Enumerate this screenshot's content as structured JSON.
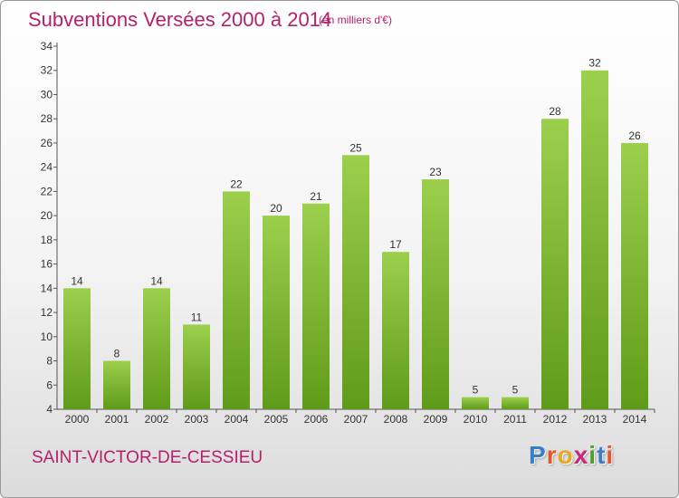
{
  "header": {
    "title": "Subventions Versées 2000 à 2014",
    "subtitle": "(en milliers d'€)"
  },
  "footer": {
    "commune": "SAINT-VICTOR-DE-CESSIEU",
    "logo": [
      "P",
      "r",
      "o",
      "x",
      "i",
      "t",
      "i"
    ]
  },
  "colors": {
    "title": "#b5206a",
    "bar_top": "#9ccf4c",
    "bar_bottom": "#5f9b1a",
    "logo": [
      "#3a7dc4",
      "#e1572b",
      "#e8a81f",
      "#c6297b",
      "#4a9f2e",
      "#3a7dc4",
      "#e1572b"
    ]
  },
  "chart_data": {
    "type": "bar",
    "title": "Subventions Versées 2000 à 2014",
    "categories": [
      "2000",
      "2001",
      "2002",
      "2003",
      "2004",
      "2005",
      "2006",
      "2007",
      "2008",
      "2009",
      "2010",
      "2011",
      "2012",
      "2013",
      "2014"
    ],
    "values": [
      14,
      8,
      14,
      11,
      22,
      20,
      21,
      25,
      17,
      23,
      5,
      5,
      28,
      32,
      26
    ],
    "data_labels": [
      "14",
      "8",
      "14",
      "11",
      "22",
      "20",
      "21",
      "25",
      "17",
      "23",
      "5",
      "5",
      "28",
      "32",
      "26"
    ],
    "y_ticks": [
      4,
      6,
      8,
      10,
      12,
      14,
      16,
      18,
      20,
      22,
      24,
      26,
      28,
      30,
      32,
      34
    ],
    "y_tick_labels": [
      "4",
      "6",
      "8",
      "10",
      "12",
      "14",
      "16",
      "18",
      "20",
      "22",
      "24",
      "26",
      "28",
      "30",
      "32",
      "34"
    ],
    "ylim": [
      4,
      34
    ],
    "grid": false,
    "legend": "none"
  }
}
